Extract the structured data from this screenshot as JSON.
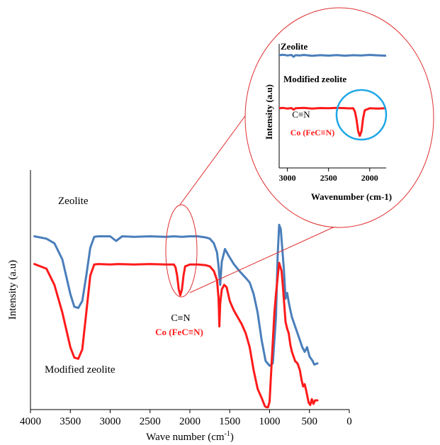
{
  "chart_data": [
    {
      "type": "line",
      "title": "",
      "xlabel": "Wave number (cm",
      "xlabel_sup": "-1",
      "xlabel_close": ")",
      "ylabel": "Intensity (a.u)",
      "xlim": [
        4000,
        0
      ],
      "x_reversed": true,
      "y_ticks_shown": false,
      "grid": false,
      "x_ticks": [
        4000,
        3500,
        3000,
        2500,
        2000,
        1500,
        1000,
        500,
        0
      ],
      "x_tick_labels": [
        "4000",
        "3500",
        "3000",
        "2500",
        "2000",
        "1500",
        "1000",
        "500",
        "0"
      ],
      "ylim": [
        0,
        100
      ],
      "series": [
        {
          "name": "Zeolite",
          "color": "#4a7ebb",
          "x": [
            3950,
            3800,
            3700,
            3600,
            3500,
            3450,
            3400,
            3350,
            3300,
            3250,
            3200,
            3150,
            3000,
            2925,
            2850,
            2700,
            2500,
            2300,
            2200,
            2100,
            2000,
            1900,
            1800,
            1750,
            1700,
            1660,
            1640,
            1620,
            1600,
            1560,
            1520,
            1450,
            1380,
            1300,
            1250,
            1200,
            1150,
            1100,
            1050,
            1000,
            960,
            920,
            900,
            880,
            860,
            820,
            800,
            780,
            760,
            740,
            720,
            700,
            680,
            650,
            620,
            590,
            560,
            530,
            500,
            460,
            440,
            400
          ],
          "y": [
            75.0,
            74.0,
            72.0,
            65.0,
            50.0,
            44.5,
            44.0,
            47.0,
            58.0,
            70.0,
            74.8,
            75.0,
            75.0,
            73.0,
            75.0,
            74.8,
            75.0,
            74.8,
            75.0,
            74.8,
            75.0,
            75.0,
            74.5,
            74.0,
            72.0,
            68.0,
            62.0,
            54.0,
            64.0,
            69.5,
            67.0,
            63.0,
            60.0,
            57.0,
            55.0,
            50.0,
            42.0,
            30.0,
            21.0,
            19.0,
            20.0,
            40.0,
            66.0,
            80.0,
            78.0,
            60.0,
            48.0,
            50.5,
            46.5,
            43.0,
            40.0,
            38.0,
            36.0,
            33.0,
            30.0,
            27.0,
            25.0,
            27.0,
            23.0,
            21.0,
            19.5,
            20.0
          ]
        },
        {
          "name": "Modified zeolite",
          "color": "#ff1a1a",
          "x": [
            3950,
            3800,
            3700,
            3600,
            3500,
            3450,
            3400,
            3350,
            3300,
            3250,
            3200,
            3150,
            3000,
            2900,
            2700,
            2500,
            2300,
            2200,
            2180,
            2160,
            2140,
            2120,
            2100,
            2080,
            2060,
            2000,
            1900,
            1800,
            1750,
            1700,
            1660,
            1640,
            1630,
            1620,
            1600,
            1570,
            1540,
            1500,
            1450,
            1400,
            1350,
            1300,
            1250,
            1200,
            1150,
            1100,
            1060,
            1040,
            1020,
            1000,
            970,
            940,
            920,
            900,
            880,
            850,
            830,
            800,
            780,
            760,
            740,
            720,
            700,
            680,
            650,
            620,
            600,
            580,
            560,
            540,
            510,
            490,
            470,
            450,
            430,
            400
          ],
          "y": [
            63.0,
            61.0,
            54.0,
            42.0,
            27.0,
            22.5,
            22.0,
            26.0,
            42.0,
            58.0,
            62.8,
            63.0,
            62.8,
            63.0,
            62.8,
            63.0,
            62.8,
            62.8,
            61.5,
            58.0,
            52.0,
            49.5,
            52.0,
            58.0,
            62.0,
            62.8,
            62.8,
            62.5,
            62.0,
            60.0,
            56.0,
            48.0,
            36.0,
            46.0,
            52.0,
            54.0,
            53.0,
            47.0,
            43.0,
            40.0,
            37.0,
            33.0,
            27.0,
            17.0,
            9.0,
            5.0,
            1.5,
            1.0,
            1.0,
            3.5,
            23.0,
            42.0,
            50.0,
            57.0,
            63.5,
            60.0,
            52.0,
            38.0,
            35.0,
            33.0,
            28.0,
            25.0,
            23.0,
            21.0,
            20.0,
            17.0,
            13.0,
            10.0,
            11.0,
            8.0,
            3.0,
            2.0,
            4.5,
            2.5,
            4.0,
            4.0
          ]
        }
      ],
      "annotations": {
        "label_zeolite": "Zeolite",
        "label_modified": "Modified zeolite",
        "label_cn": "C≡N",
        "label_co": "Co (FeC≡N)"
      }
    },
    {
      "type": "line",
      "title": "",
      "xlabel": "Wavenumber (cm-1)",
      "ylabel": "Intensity (a.u)",
      "xlim": [
        3100,
        1800
      ],
      "x_reversed": true,
      "x_ticks": [
        3000,
        2500,
        2000
      ],
      "x_tick_labels": [
        "3000",
        "2500",
        "2000"
      ],
      "grid": false,
      "ylim": [
        0,
        100
      ],
      "series": [
        {
          "name": "Zeolite",
          "color": "#4a7ebb",
          "x": [
            3100,
            3050,
            3000,
            2950,
            2925,
            2900,
            2850,
            2800,
            2700,
            2600,
            2500,
            2400,
            2300,
            2200,
            2100,
            2000,
            1900,
            1800
          ],
          "y": [
            86.0,
            86.3,
            85.8,
            86.2,
            84.8,
            86.0,
            85.8,
            86.2,
            85.5,
            86.0,
            85.7,
            86.1,
            85.6,
            86.0,
            85.8,
            86.2,
            85.9,
            85.6
          ]
        },
        {
          "name": "Modified zeolite",
          "color": "#ff1a1a",
          "x": [
            3100,
            3050,
            3000,
            2950,
            2925,
            2900,
            2800,
            2700,
            2600,
            2500,
            2400,
            2300,
            2250,
            2200,
            2180,
            2160,
            2140,
            2120,
            2100,
            2080,
            2060,
            2000,
            1900,
            1800
          ],
          "y": [
            45.5,
            45.8,
            45.3,
            45.7,
            44.5,
            45.5,
            45.8,
            45.3,
            45.7,
            45.5,
            45.8,
            45.6,
            45.4,
            45.5,
            43.0,
            37.0,
            28.0,
            24.5,
            28.0,
            38.0,
            44.0,
            45.5,
            45.3,
            45.6
          ]
        }
      ],
      "annotations": {
        "label_zeolite": "Zeolite",
        "label_modified": "Modified zeolite",
        "label_cn": "C≡N",
        "label_co": "Co (FeC≡N)"
      },
      "highlight_circle_color": "#1ea7e6"
    }
  ]
}
